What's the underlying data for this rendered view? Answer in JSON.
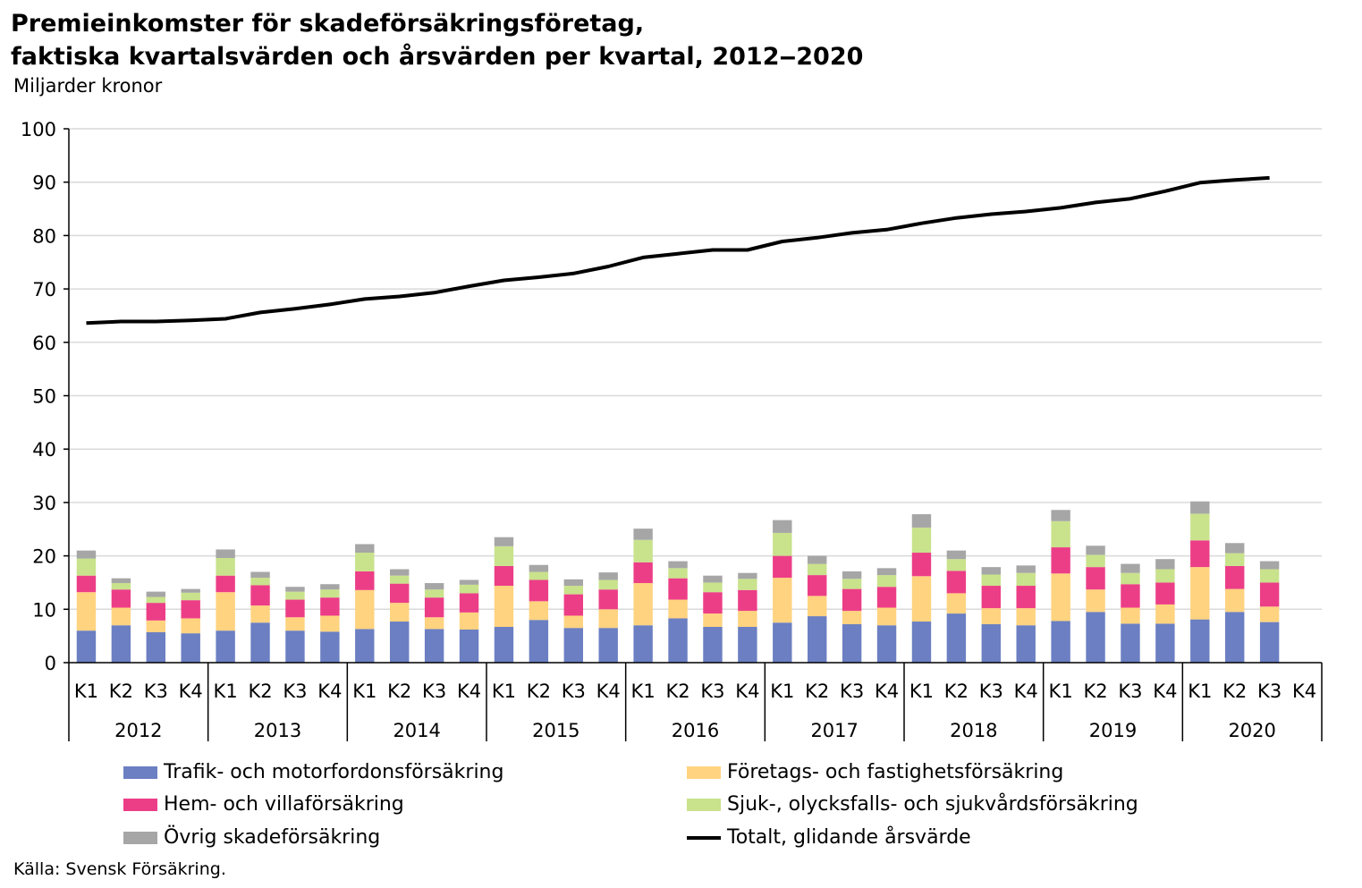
{
  "title": "Premieinkomster för skadeförsäkringsföretag,\nfaktiska kvartalsvärden och årsvärden per kvartal, 2012‒2020",
  "unit_label": "Miljarder kronor",
  "source": "Källa: Svensk Försäkring.",
  "colors": {
    "trafik": "#6b7fc2",
    "foretag": "#ffd37f",
    "hem": "#ec3e87",
    "sjuk": "#c9e28c",
    "ovrig": "#a6a6a6",
    "total": "#000000",
    "grid": "#d9d9d9"
  },
  "chart_data": {
    "type": "bar",
    "stacked": true,
    "ylim": [
      0,
      100
    ],
    "yticks": [
      0,
      10,
      20,
      30,
      40,
      50,
      60,
      70,
      80,
      90,
      100
    ],
    "grid": true,
    "legend_position": "bottom",
    "quarter_labels": [
      "K1",
      "K2",
      "K3",
      "K4"
    ],
    "years": [
      "2012",
      "2013",
      "2014",
      "2015",
      "2016",
      "2017",
      "2018",
      "2019",
      "2020"
    ],
    "series": [
      {
        "name": "Trafik- och motorfordonsförsäkring",
        "key": "trafik",
        "values": [
          6.0,
          7.0,
          5.7,
          5.5,
          6.0,
          7.5,
          6.0,
          5.8,
          6.3,
          7.7,
          6.3,
          6.2,
          6.7,
          8.0,
          6.5,
          6.5,
          7.0,
          8.3,
          6.7,
          6.7,
          7.5,
          8.7,
          7.2,
          7.0,
          7.7,
          9.2,
          7.2,
          7.0,
          7.8,
          9.5,
          7.3,
          7.3,
          8.1,
          9.5,
          7.6,
          null
        ]
      },
      {
        "name": "Företags- och fastighetsförsäkring",
        "key": "foretag",
        "values": [
          7.2,
          3.3,
          2.2,
          2.8,
          7.2,
          3.2,
          2.5,
          3.0,
          7.3,
          3.5,
          2.2,
          3.2,
          7.7,
          3.5,
          2.3,
          3.5,
          7.9,
          3.5,
          2.5,
          3.0,
          8.4,
          3.8,
          2.5,
          3.3,
          8.5,
          3.8,
          3.0,
          3.2,
          8.9,
          4.2,
          3.0,
          3.6,
          9.8,
          4.3,
          2.9,
          null
        ]
      },
      {
        "name": "Hem- och villaförsäkring",
        "key": "hem",
        "values": [
          3.1,
          3.4,
          3.3,
          3.4,
          3.1,
          3.8,
          3.3,
          3.4,
          3.5,
          3.6,
          3.7,
          3.6,
          3.7,
          4.0,
          4.0,
          3.7,
          3.9,
          4.0,
          4.0,
          3.9,
          4.1,
          3.9,
          4.1,
          3.9,
          4.4,
          4.2,
          4.2,
          4.2,
          4.9,
          4.2,
          4.4,
          4.1,
          5.0,
          4.3,
          4.5,
          null
        ]
      },
      {
        "name": "Sjuk-, olycksfalls- och sjukvårdsförsäkring",
        "key": "sjuk",
        "values": [
          3.2,
          1.2,
          1.1,
          1.4,
          3.3,
          1.4,
          1.5,
          1.5,
          3.5,
          1.5,
          1.5,
          1.6,
          3.7,
          1.5,
          1.6,
          1.8,
          4.2,
          1.9,
          1.8,
          2.1,
          4.3,
          2.1,
          1.9,
          2.2,
          4.7,
          2.2,
          2.1,
          2.4,
          4.9,
          2.3,
          2.1,
          2.5,
          5.0,
          2.4,
          2.5,
          null
        ]
      },
      {
        "name": "Övrig skadeförsäkring",
        "key": "ovrig",
        "values": [
          1.5,
          0.9,
          1.0,
          0.7,
          1.6,
          1.1,
          0.9,
          1.0,
          1.6,
          1.2,
          1.2,
          0.9,
          1.7,
          1.3,
          1.2,
          1.4,
          2.1,
          1.3,
          1.3,
          1.1,
          2.4,
          1.5,
          1.4,
          1.3,
          2.5,
          1.6,
          1.4,
          1.4,
          2.1,
          1.7,
          1.7,
          1.9,
          2.3,
          1.9,
          1.5,
          null
        ]
      }
    ],
    "line": {
      "name": "Totalt, glidande årsvärde",
      "key": "total",
      "values": [
        63.6,
        63.9,
        63.9,
        64.1,
        64.4,
        65.6,
        66.3,
        67.1,
        68.1,
        68.6,
        69.3,
        70.5,
        71.6,
        72.2,
        72.9,
        74.2,
        75.9,
        76.6,
        77.3,
        77.3,
        78.9,
        79.6,
        80.5,
        81.1,
        82.3,
        83.3,
        84.0,
        84.5,
        85.2,
        86.2,
        86.9,
        88.3,
        89.9,
        90.4,
        90.8,
        null
      ]
    }
  }
}
